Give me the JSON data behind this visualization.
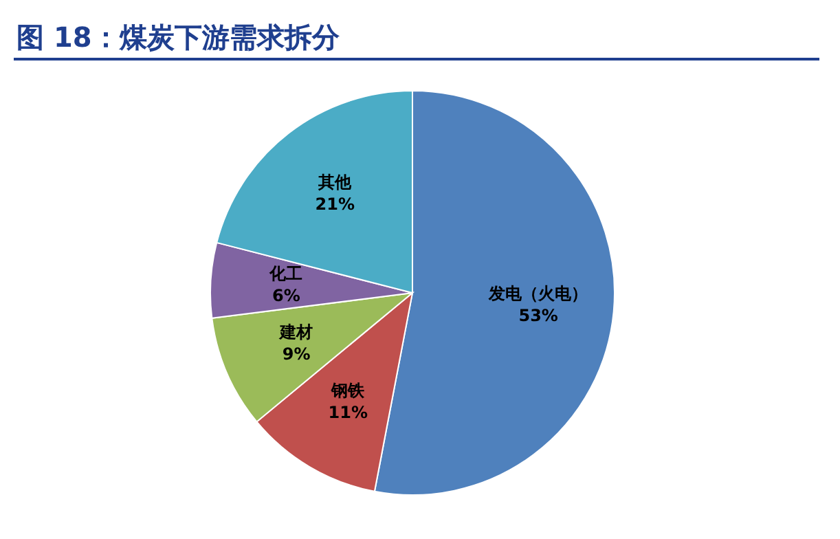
{
  "chart_data": {
    "type": "pie",
    "title": "图 18：煤炭下游需求拆分",
    "categories": [
      "发电（火电）",
      "钢铁",
      "建材",
      "化工",
      "其他"
    ],
    "values": [
      53,
      11,
      9,
      6,
      21
    ],
    "value_labels": [
      "53%",
      "11%",
      "9%",
      "6%",
      "21%"
    ],
    "colors": [
      "#4f81bd",
      "#c0504d",
      "#9bbb59",
      "#8064a2",
      "#4bacc6"
    ]
  }
}
